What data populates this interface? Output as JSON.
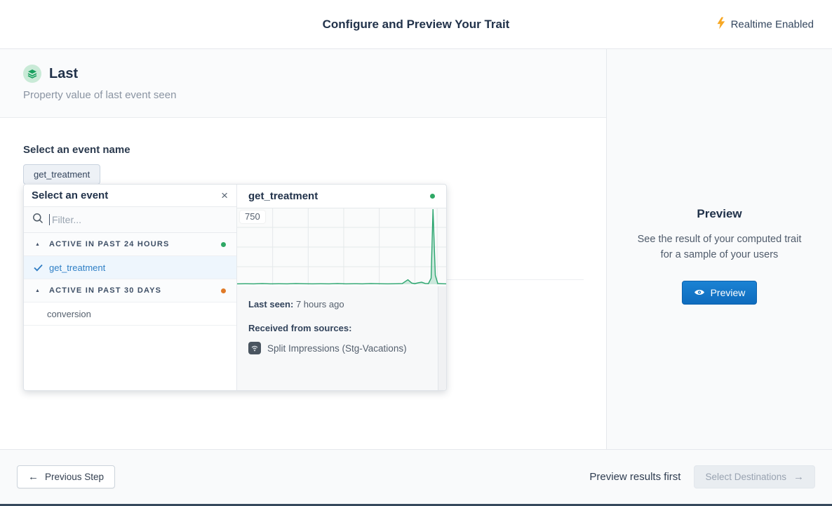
{
  "header": {
    "title": "Configure and Preview Your Trait",
    "realtime_label": "Realtime Enabled",
    "realtime_color": "#f7a723"
  },
  "trait": {
    "name": "Last",
    "description": "Property value of last event seen"
  },
  "event_select": {
    "label": "Select an event name",
    "selected_chip": "get_treatment"
  },
  "dropdown": {
    "title": "Select an event",
    "filter_placeholder": "Filter...",
    "groups": [
      {
        "label": "ACTIVE IN PAST 24 HOURS",
        "dot_color": "#2fa865",
        "items": [
          {
            "label": "get_treatment",
            "selected": true
          }
        ]
      },
      {
        "label": "ACTIVE IN PAST 30 DAYS",
        "dot_color": "#e07a28",
        "items": [
          {
            "label": "conversion",
            "selected": false
          }
        ]
      }
    ]
  },
  "event_detail": {
    "title": "get_treatment",
    "status_dot_color": "#2fa865",
    "last_seen_label": "Last seen:",
    "last_seen_value": "7 hours ago",
    "sources_label": "Received from sources:",
    "source_name": "Split Impressions (Stg-Vacations)"
  },
  "chart_data": {
    "type": "area",
    "title": "get_treatment",
    "xlabel": "",
    "ylabel": "",
    "ylim": [
      0,
      750
    ],
    "y_max_label": "750",
    "grid": true,
    "legend": false,
    "color": "#2aa56e",
    "x": [
      0,
      4,
      8,
      12,
      16,
      20,
      24,
      28,
      32,
      36,
      40,
      44,
      48,
      52,
      56,
      60,
      64,
      68,
      72,
      76,
      79,
      81.7,
      83.5,
      85,
      87,
      88.3,
      90,
      91.5,
      92.8,
      93.7,
      94.8,
      96,
      98,
      100
    ],
    "values": [
      4,
      5,
      4,
      6,
      4,
      5,
      4,
      6,
      5,
      4,
      5,
      4,
      6,
      4,
      5,
      4,
      6,
      5,
      4,
      5,
      6,
      45,
      12,
      6,
      16,
      20,
      8,
      6,
      60,
      750,
      90,
      6,
      5,
      4
    ]
  },
  "preview_panel": {
    "title": "Preview",
    "description_line1": "See the result of your computed trait",
    "description_line2": "for a sample of your users",
    "button_label": "Preview"
  },
  "footer": {
    "previous_label": "Previous Step",
    "hint": "Preview results first",
    "next_label": "Select Destinations"
  },
  "icons": {
    "realtime": "lightning-bolt",
    "trait": "layers",
    "filter": "magnifier",
    "selected_item": "checkmark",
    "close": "x",
    "group_toggle": "triangle-up",
    "source": "wifi",
    "preview": "eye",
    "previous": "arrow-left",
    "next": "arrow-right"
  }
}
